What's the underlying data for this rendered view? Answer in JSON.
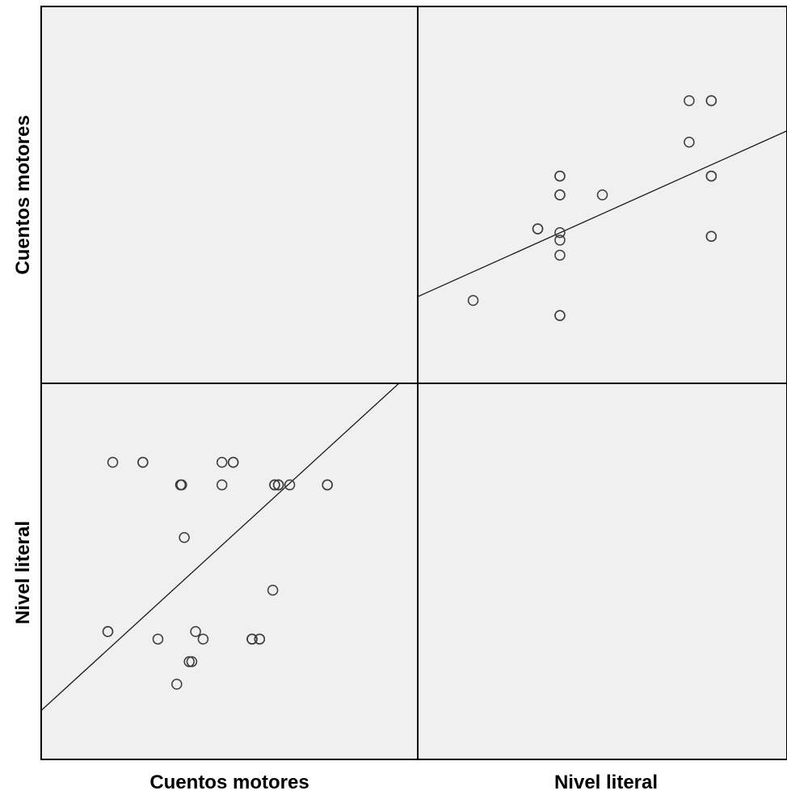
{
  "chart_data": {
    "type": "scatter",
    "variables": [
      "Cuentos motores",
      "Nivel literal"
    ],
    "panels": [
      {
        "row": "Nivel literal",
        "col": "Cuentos motores",
        "x_variable": "Cuentos motores",
        "y_variable": "Nivel literal",
        "xlim": [
          0,
          100
        ],
        "ylim": [
          0,
          100
        ],
        "points": [
          {
            "x": 19,
            "y": 79
          },
          {
            "x": 27,
            "y": 79
          },
          {
            "x": 27,
            "y": 79
          },
          {
            "x": 37,
            "y": 73
          },
          {
            "x": 37.3,
            "y": 73
          },
          {
            "x": 48,
            "y": 73
          },
          {
            "x": 48,
            "y": 79
          },
          {
            "x": 51,
            "y": 79
          },
          {
            "x": 51,
            "y": 79
          },
          {
            "x": 66,
            "y": 73
          },
          {
            "x": 76,
            "y": 73
          },
          {
            "x": 76,
            "y": 73
          },
          {
            "x": 38,
            "y": 59
          },
          {
            "x": 31,
            "y": 32
          },
          {
            "x": 43,
            "y": 32
          },
          {
            "x": 56,
            "y": 32
          },
          {
            "x": 58,
            "y": 32
          },
          {
            "x": 58,
            "y": 32
          },
          {
            "x": 36,
            "y": 20
          },
          {
            "x": 17.7,
            "y": 34
          },
          {
            "x": 17.7,
            "y": 34
          },
          {
            "x": 39.3,
            "y": 26
          },
          {
            "x": 40,
            "y": 26
          },
          {
            "x": 41,
            "y": 34
          },
          {
            "x": 56,
            "y": 32
          },
          {
            "x": 56,
            "y": 32
          },
          {
            "x": 61.5,
            "y": 45
          },
          {
            "x": 62,
            "y": 73
          },
          {
            "x": 62,
            "y": 73
          },
          {
            "x": 63,
            "y": 73
          },
          {
            "x": 63,
            "y": 73
          }
        ],
        "fit_line": [
          [
            0,
            13
          ],
          [
            95,
            100
          ]
        ]
      },
      {
        "row": "Cuentos motores",
        "col": "Nivel literal",
        "x_variable": "Nivel literal",
        "y_variable": "Cuentos motores",
        "xlim": [
          0,
          100
        ],
        "ylim": [
          0,
          100
        ],
        "points": [
          {
            "x": 15,
            "y": 22
          },
          {
            "x": 38.5,
            "y": 18
          },
          {
            "x": 38.5,
            "y": 18
          },
          {
            "x": 38.5,
            "y": 34
          },
          {
            "x": 38.5,
            "y": 38
          },
          {
            "x": 38.5,
            "y": 40
          },
          {
            "x": 32.5,
            "y": 41
          },
          {
            "x": 32.5,
            "y": 41
          },
          {
            "x": 38.5,
            "y": 50
          },
          {
            "x": 38.5,
            "y": 50
          },
          {
            "x": 38.5,
            "y": 55
          },
          {
            "x": 38.5,
            "y": 55
          },
          {
            "x": 50,
            "y": 50
          },
          {
            "x": 73.5,
            "y": 64
          },
          {
            "x": 73.5,
            "y": 75
          },
          {
            "x": 79.5,
            "y": 75
          },
          {
            "x": 79.5,
            "y": 75
          },
          {
            "x": 79.5,
            "y": 55
          },
          {
            "x": 79.5,
            "y": 55
          },
          {
            "x": 79.5,
            "y": 39
          },
          {
            "x": 79.5,
            "y": 39
          }
        ],
        "fit_line": [
          [
            0,
            23
          ],
          [
            100,
            67
          ]
        ]
      }
    ],
    "xlabels": [
      "Cuentos motores",
      "Nivel literal"
    ],
    "ylabels": [
      "Cuentos motores",
      "Nivel literal"
    ],
    "grid": false,
    "legend": "none",
    "colors": {
      "panel_bg": "#f0f0f0",
      "marker": "#3c3c3c",
      "line": "#1a1a1a",
      "frame": "#000000"
    }
  }
}
